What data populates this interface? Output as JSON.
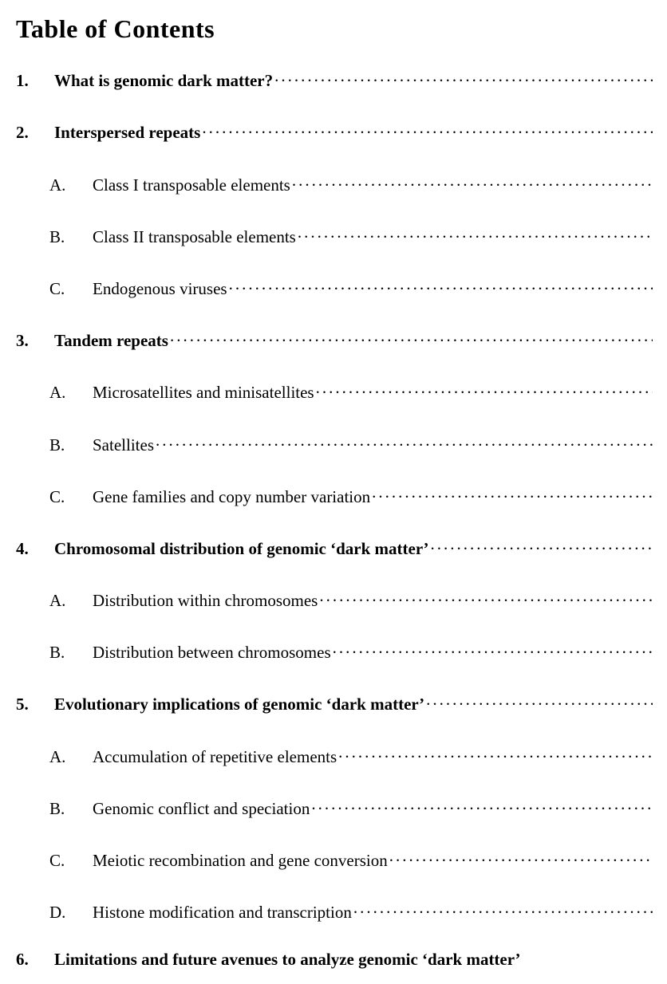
{
  "title": "Table of Contents",
  "entries": [
    {
      "level": 1,
      "marker": "1.",
      "text": "What is genomic dark matter?",
      "leader": true
    },
    {
      "level": 1,
      "marker": "2.",
      "text": "Interspersed repeats",
      "leader": true
    },
    {
      "level": 2,
      "marker": "A.",
      "text": "Class I transposable elements",
      "leader": true
    },
    {
      "level": 2,
      "marker": "B.",
      "text": "Class II transposable elements",
      "leader": true
    },
    {
      "level": 2,
      "marker": "C.",
      "text": "Endogenous viruses",
      "leader": true
    },
    {
      "level": 1,
      "marker": "3.",
      "text": "Tandem repeats",
      "leader": true
    },
    {
      "level": 2,
      "marker": "A.",
      "text": "Microsatellites and minisatellites",
      "leader": true
    },
    {
      "level": 2,
      "marker": "B.",
      "text": "Satellites",
      "leader": true
    },
    {
      "level": 2,
      "marker": "C.",
      "text": "Gene families and copy number variation",
      "leader": true
    },
    {
      "level": 1,
      "marker": "4.",
      "text": "Chromosomal distribution of genomic ‘dark matter’",
      "leader": true
    },
    {
      "level": 2,
      "marker": "A.",
      "text": "Distribution within chromosomes",
      "leader": true
    },
    {
      "level": 2,
      "marker": "B.",
      "text": "Distribution between chromosomes",
      "leader": true
    },
    {
      "level": 1,
      "marker": "5.",
      "text": "Evolutionary implications of genomic ‘dark matter’",
      "leader": true
    },
    {
      "level": 2,
      "marker": "A.",
      "text": "Accumulation of repetitive elements",
      "leader": true
    },
    {
      "level": 2,
      "marker": "B.",
      "text": "Genomic conflict and speciation",
      "leader": true
    },
    {
      "level": 2,
      "marker": "C.",
      "text": "Meiotic recombination and gene conversion",
      "leader": true
    },
    {
      "level": 2,
      "marker": "D.",
      "text": "Histone modification and transcription",
      "leader": true
    },
    {
      "level": 1,
      "marker": "6.",
      "text": "Limitations and future avenues to analyze genomic ‘dark matter’",
      "leader": false
    }
  ],
  "colors": {
    "background": "#ffffff",
    "text": "#000000"
  },
  "typography": {
    "font_family": "Times New Roman",
    "title_fontsize": 32,
    "entry_fontsize": 21
  }
}
